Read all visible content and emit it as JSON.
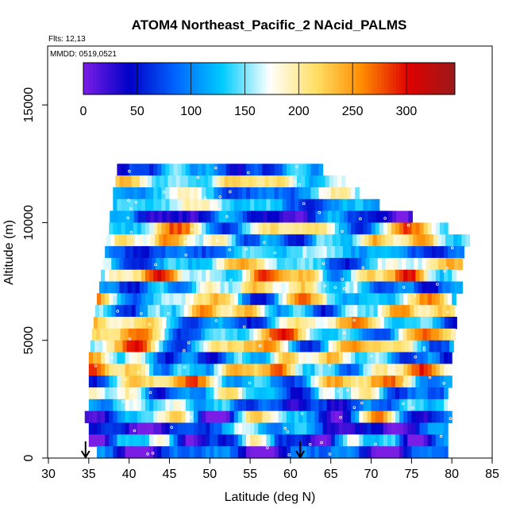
{
  "chart_data": {
    "type": "heatmap",
    "title": "ATOM4 Northeast_Pacific_2 NAcid_PALMS",
    "subtitle_flights": "Flts: 12,13",
    "subtitle_dates": "MMDD: 0519,0521",
    "xlabel": "Latitude (deg N)",
    "ylabel": "Altitude (m)",
    "xlim": [
      30,
      85
    ],
    "ylim": [
      0,
      17500
    ],
    "xticks": [
      30,
      35,
      40,
      45,
      50,
      55,
      60,
      65,
      70,
      75,
      80,
      85
    ],
    "yticks": [
      0,
      5000,
      10000,
      15000
    ],
    "colorbar": {
      "range": [
        0,
        345
      ],
      "ticks": [
        0,
        50,
        100,
        150,
        200,
        250,
        300
      ],
      "colors": [
        "#7a1ee6",
        "#0000c8",
        "#0066ff",
        "#00ccff",
        "#ffffff",
        "#ffe066",
        "#ff8c00",
        "#e00000",
        "#9a1a1a"
      ]
    },
    "markers": [
      {
        "label": "down-arrow",
        "x": 34.6
      },
      {
        "label": "down-arrow",
        "x": 61.2
      }
    ],
    "curtain": {
      "lat_step": 0.5,
      "alt_band_m": 500,
      "rows": [
        {
          "alt": 12250,
          "lat": [
            38.5,
            64.0
          ],
          "seed": 3,
          "base": 90,
          "amp": 60
        },
        {
          "alt": 11750,
          "lat": [
            38.3,
            66.5
          ],
          "seed": 7,
          "base": 180,
          "amp": 70
        },
        {
          "alt": 11250,
          "lat": [
            38.0,
            68.5
          ],
          "seed": 11,
          "base": 120,
          "amp": 80
        },
        {
          "alt": 10750,
          "lat": [
            38.0,
            71.0
          ],
          "seed": 5,
          "base": 130,
          "amp": 70
        },
        {
          "alt": 10250,
          "lat": [
            37.6,
            75.0
          ],
          "seed": 13,
          "base": 60,
          "amp": 70
        },
        {
          "alt": 9750,
          "lat": [
            37.5,
            79.5
          ],
          "seed": 17,
          "base": 170,
          "amp": 120
        },
        {
          "alt": 9250,
          "lat": [
            37.2,
            82.0
          ],
          "seed": 19,
          "base": 150,
          "amp": 110
        },
        {
          "alt": 8750,
          "lat": [
            37.0,
            81.5
          ],
          "seed": 23,
          "base": 110,
          "amp": 60
        },
        {
          "alt": 8250,
          "lat": [
            36.8,
            81.0
          ],
          "seed": 29,
          "base": 150,
          "amp": 100
        },
        {
          "alt": 7750,
          "lat": [
            36.5,
            80.5
          ],
          "seed": 31,
          "base": 200,
          "amp": 110
        },
        {
          "alt": 7250,
          "lat": [
            36.3,
            81.0
          ],
          "seed": 37,
          "base": 140,
          "amp": 100
        },
        {
          "alt": 6750,
          "lat": [
            36.0,
            80.5
          ],
          "seed": 41,
          "base": 160,
          "amp": 120
        },
        {
          "alt": 6250,
          "lat": [
            35.8,
            80.0
          ],
          "seed": 43,
          "base": 160,
          "amp": 110
        },
        {
          "alt": 5750,
          "lat": [
            35.6,
            80.5
          ],
          "seed": 47,
          "base": 150,
          "amp": 120
        },
        {
          "alt": 5250,
          "lat": [
            35.4,
            80.0
          ],
          "seed": 53,
          "base": 170,
          "amp": 130
        },
        {
          "alt": 4750,
          "lat": [
            35.2,
            80.0
          ],
          "seed": 59,
          "base": 180,
          "amp": 130
        },
        {
          "alt": 4250,
          "lat": [
            35.0,
            80.0
          ],
          "seed": 61,
          "base": 140,
          "amp": 110
        },
        {
          "alt": 3750,
          "lat": [
            35.0,
            80.0
          ],
          "seed": 67,
          "base": 180,
          "amp": 110
        },
        {
          "alt": 3250,
          "lat": [
            35.0,
            80.0
          ],
          "seed": 71,
          "base": 170,
          "amp": 130
        },
        {
          "alt": 2750,
          "lat": [
            35.0,
            79.5
          ],
          "seed": 73,
          "base": 130,
          "amp": 100
        },
        {
          "alt": 2250,
          "lat": [
            35.0,
            80.0
          ],
          "seed": 79,
          "base": 100,
          "amp": 80
        },
        {
          "alt": 1750,
          "lat": [
            34.5,
            80.0
          ],
          "seed": 83,
          "base": 120,
          "amp": 150
        },
        {
          "alt": 1250,
          "lat": [
            35.0,
            79.5
          ],
          "seed": 89,
          "base": 80,
          "amp": 90
        },
        {
          "alt": 750,
          "lat": [
            35.0,
            79.5
          ],
          "seed": 97,
          "base": 90,
          "amp": 120
        },
        {
          "alt": 250,
          "lat": [
            36.0,
            79.5
          ],
          "seed": 101,
          "base": 60,
          "amp": 80
        }
      ]
    }
  }
}
